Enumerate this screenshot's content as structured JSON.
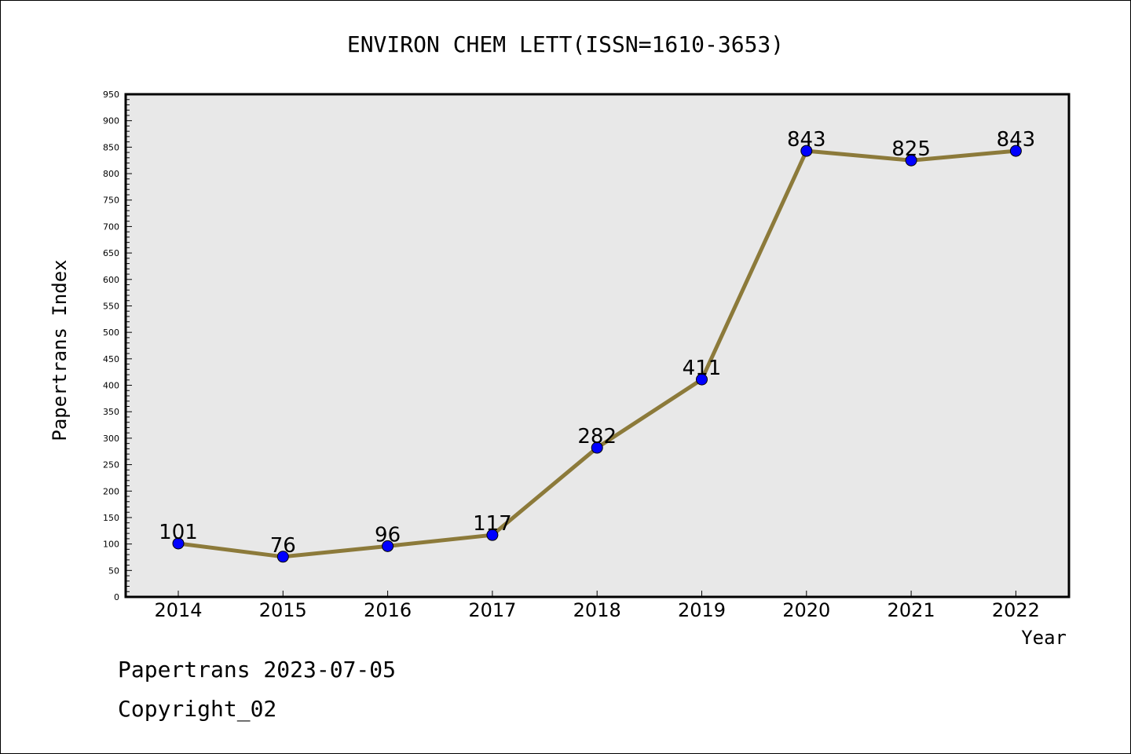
{
  "chart_data": {
    "type": "line",
    "title": "ENVIRON CHEM LETT(ISSN=1610-3653)",
    "xlabel": "Year",
    "ylabel": "Papertrans Index",
    "categories": [
      "2014",
      "2015",
      "2016",
      "2017",
      "2018",
      "2019",
      "2020",
      "2021",
      "2022"
    ],
    "series": [
      {
        "values": [
          101,
          76,
          96,
          117,
          282,
          411,
          843,
          825,
          843
        ],
        "data_labels": [
          "101",
          "76",
          "96",
          "117",
          "282",
          "411",
          "843",
          "825",
          "843"
        ]
      }
    ],
    "ylim": [
      0,
      950
    ],
    "yticks": [
      "0",
      "50",
      "100",
      "150",
      "200",
      "250",
      "300",
      "350",
      "400",
      "450",
      "500",
      "550",
      "600",
      "650",
      "700",
      "750",
      "800",
      "850",
      "900",
      "950"
    ],
    "grid": false,
    "legend": "none",
    "colors": {
      "line": "#8c7a3a",
      "marker": "#0000ff",
      "plot_background": "#e8e8e8"
    }
  },
  "footer": {
    "line1": "Papertrans 2023-07-05",
    "line2": "Copyright_02"
  }
}
